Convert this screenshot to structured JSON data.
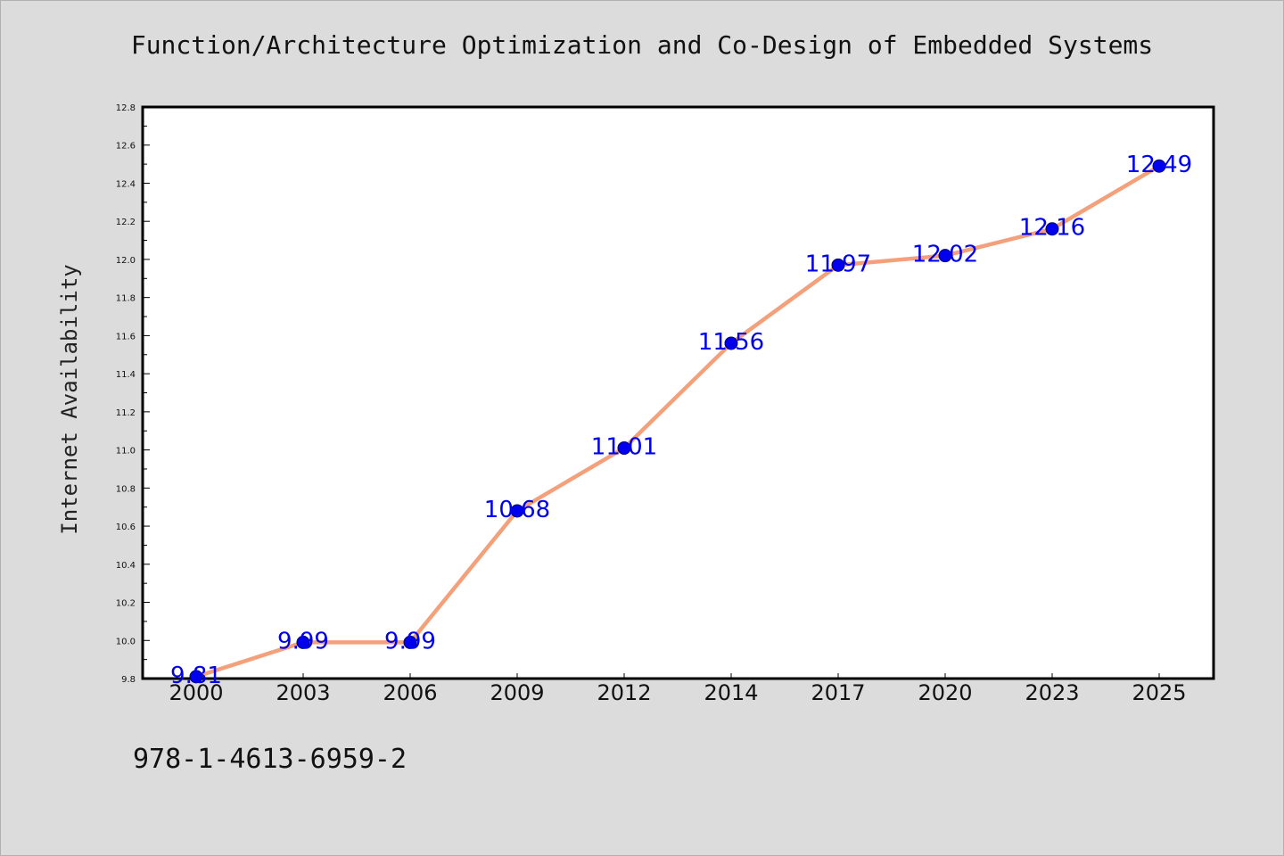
{
  "page": {
    "title": "Function/Architecture Optimization and Co-Design of Embedded Systems",
    "isbn": "978-1-4613-6959-2"
  },
  "colors": {
    "background": "#dcdcdc",
    "plot_background": "#ffffff",
    "line": "#f4a07a",
    "marker": "#0000ee",
    "marker_edge": "#00006e",
    "data_label": "#0000ee"
  },
  "chart_data": {
    "type": "line",
    "title": "Function/Architecture Optimization and Co-Design of Embedded Systems",
    "xlabel": "",
    "ylabel": "Internet Availability",
    "categories": [
      "2000",
      "2003",
      "2006",
      "2009",
      "2012",
      "2014",
      "2017",
      "2020",
      "2023",
      "2025"
    ],
    "series": [
      {
        "values": [
          9.81,
          9.99,
          9.99,
          10.68,
          11.01,
          11.56,
          11.97,
          12.02,
          12.16,
          12.49
        ]
      }
    ],
    "data_labels": [
      "9.81",
      "9.99",
      "9.99",
      "10.68",
      "11.01",
      "11.56",
      "11.97",
      "12.02",
      "12.16",
      "12.49"
    ],
    "ylim": [
      9.8,
      12.8
    ],
    "yticks": [
      "9.8",
      "10.0",
      "10.2",
      "10.4",
      "10.6",
      "10.8",
      "11.0",
      "11.2",
      "11.4",
      "11.6",
      "11.8",
      "12.0",
      "12.2",
      "12.4",
      "12.6",
      "12.8"
    ],
    "grid": false,
    "legend": "none"
  }
}
